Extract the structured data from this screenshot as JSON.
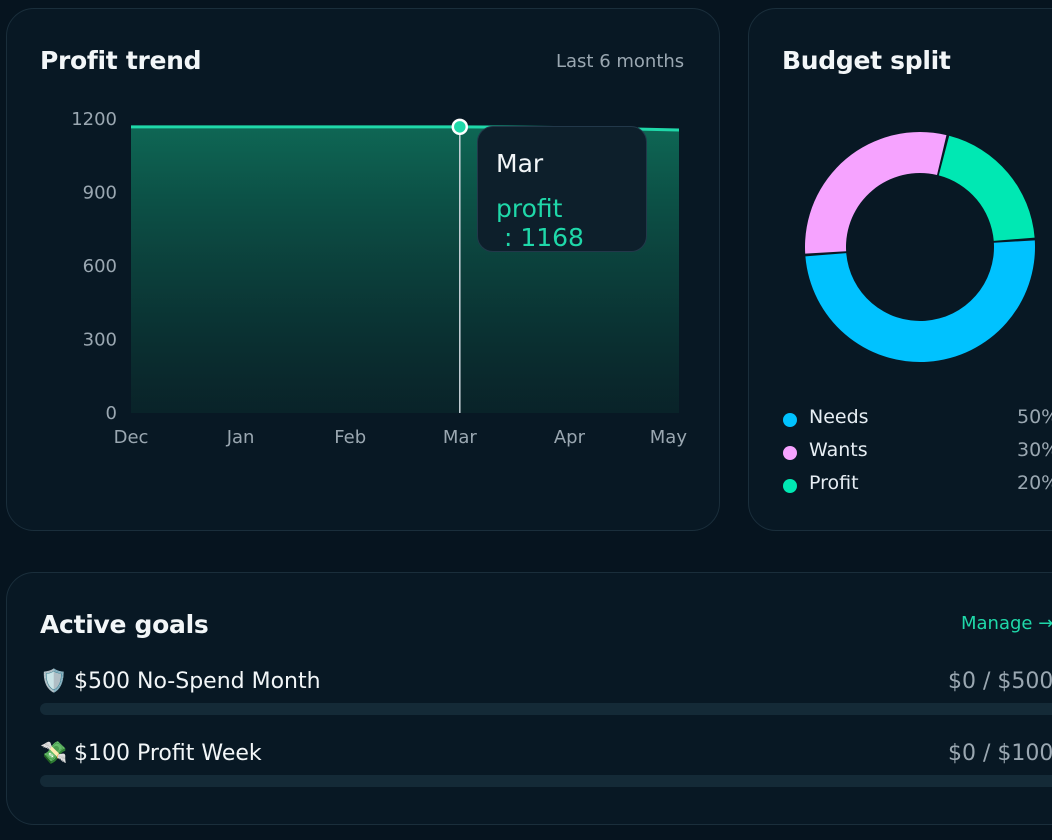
{
  "trend": {
    "title": "Profit trend",
    "period": "Last 6 months",
    "tooltip": {
      "month": "Mar",
      "series": "profit",
      "separator": " : ",
      "value": "1168"
    },
    "color": "#1fd8a9"
  },
  "chart_data": {
    "type": "area",
    "title": "Profit trend",
    "x": [
      "Dec",
      "Jan",
      "Feb",
      "Mar",
      "Apr",
      "May"
    ],
    "series": [
      {
        "name": "profit",
        "values": [
          1168,
          1168,
          1168,
          1168,
          1165,
          1155
        ]
      }
    ],
    "yticks": [
      0,
      300,
      600,
      900,
      1200
    ],
    "ylim": [
      0,
      1200
    ],
    "highlight_index": 3,
    "grid": false,
    "legend": "none"
  },
  "budget": {
    "title": "Budget split",
    "chart_data": {
      "type": "pie",
      "categories": [
        "Needs",
        "Wants",
        "Profit"
      ],
      "values": [
        50,
        30,
        20
      ],
      "colors": [
        "#00c2ff",
        "#f6a3ff",
        "#00e8b3"
      ]
    },
    "legend": [
      {
        "label": "Needs",
        "pct": "50%",
        "color": "#00c2ff"
      },
      {
        "label": "Wants",
        "pct": "30%",
        "color": "#f6a3ff"
      },
      {
        "label": "Profit",
        "pct": "20%",
        "color": "#00e8b3"
      }
    ]
  },
  "goals": {
    "title": "Active goals",
    "manage_label": "Manage →",
    "items": [
      {
        "icon": "🛡️",
        "icon_name": "shield-icon",
        "name": "$500 No-Spend Month",
        "amount": "$0 / $500",
        "progress": 0
      },
      {
        "icon": "💸",
        "icon_name": "money-with-wings-icon",
        "name": "$100 Profit Week",
        "amount": "$0 / $100",
        "progress": 0
      }
    ]
  }
}
